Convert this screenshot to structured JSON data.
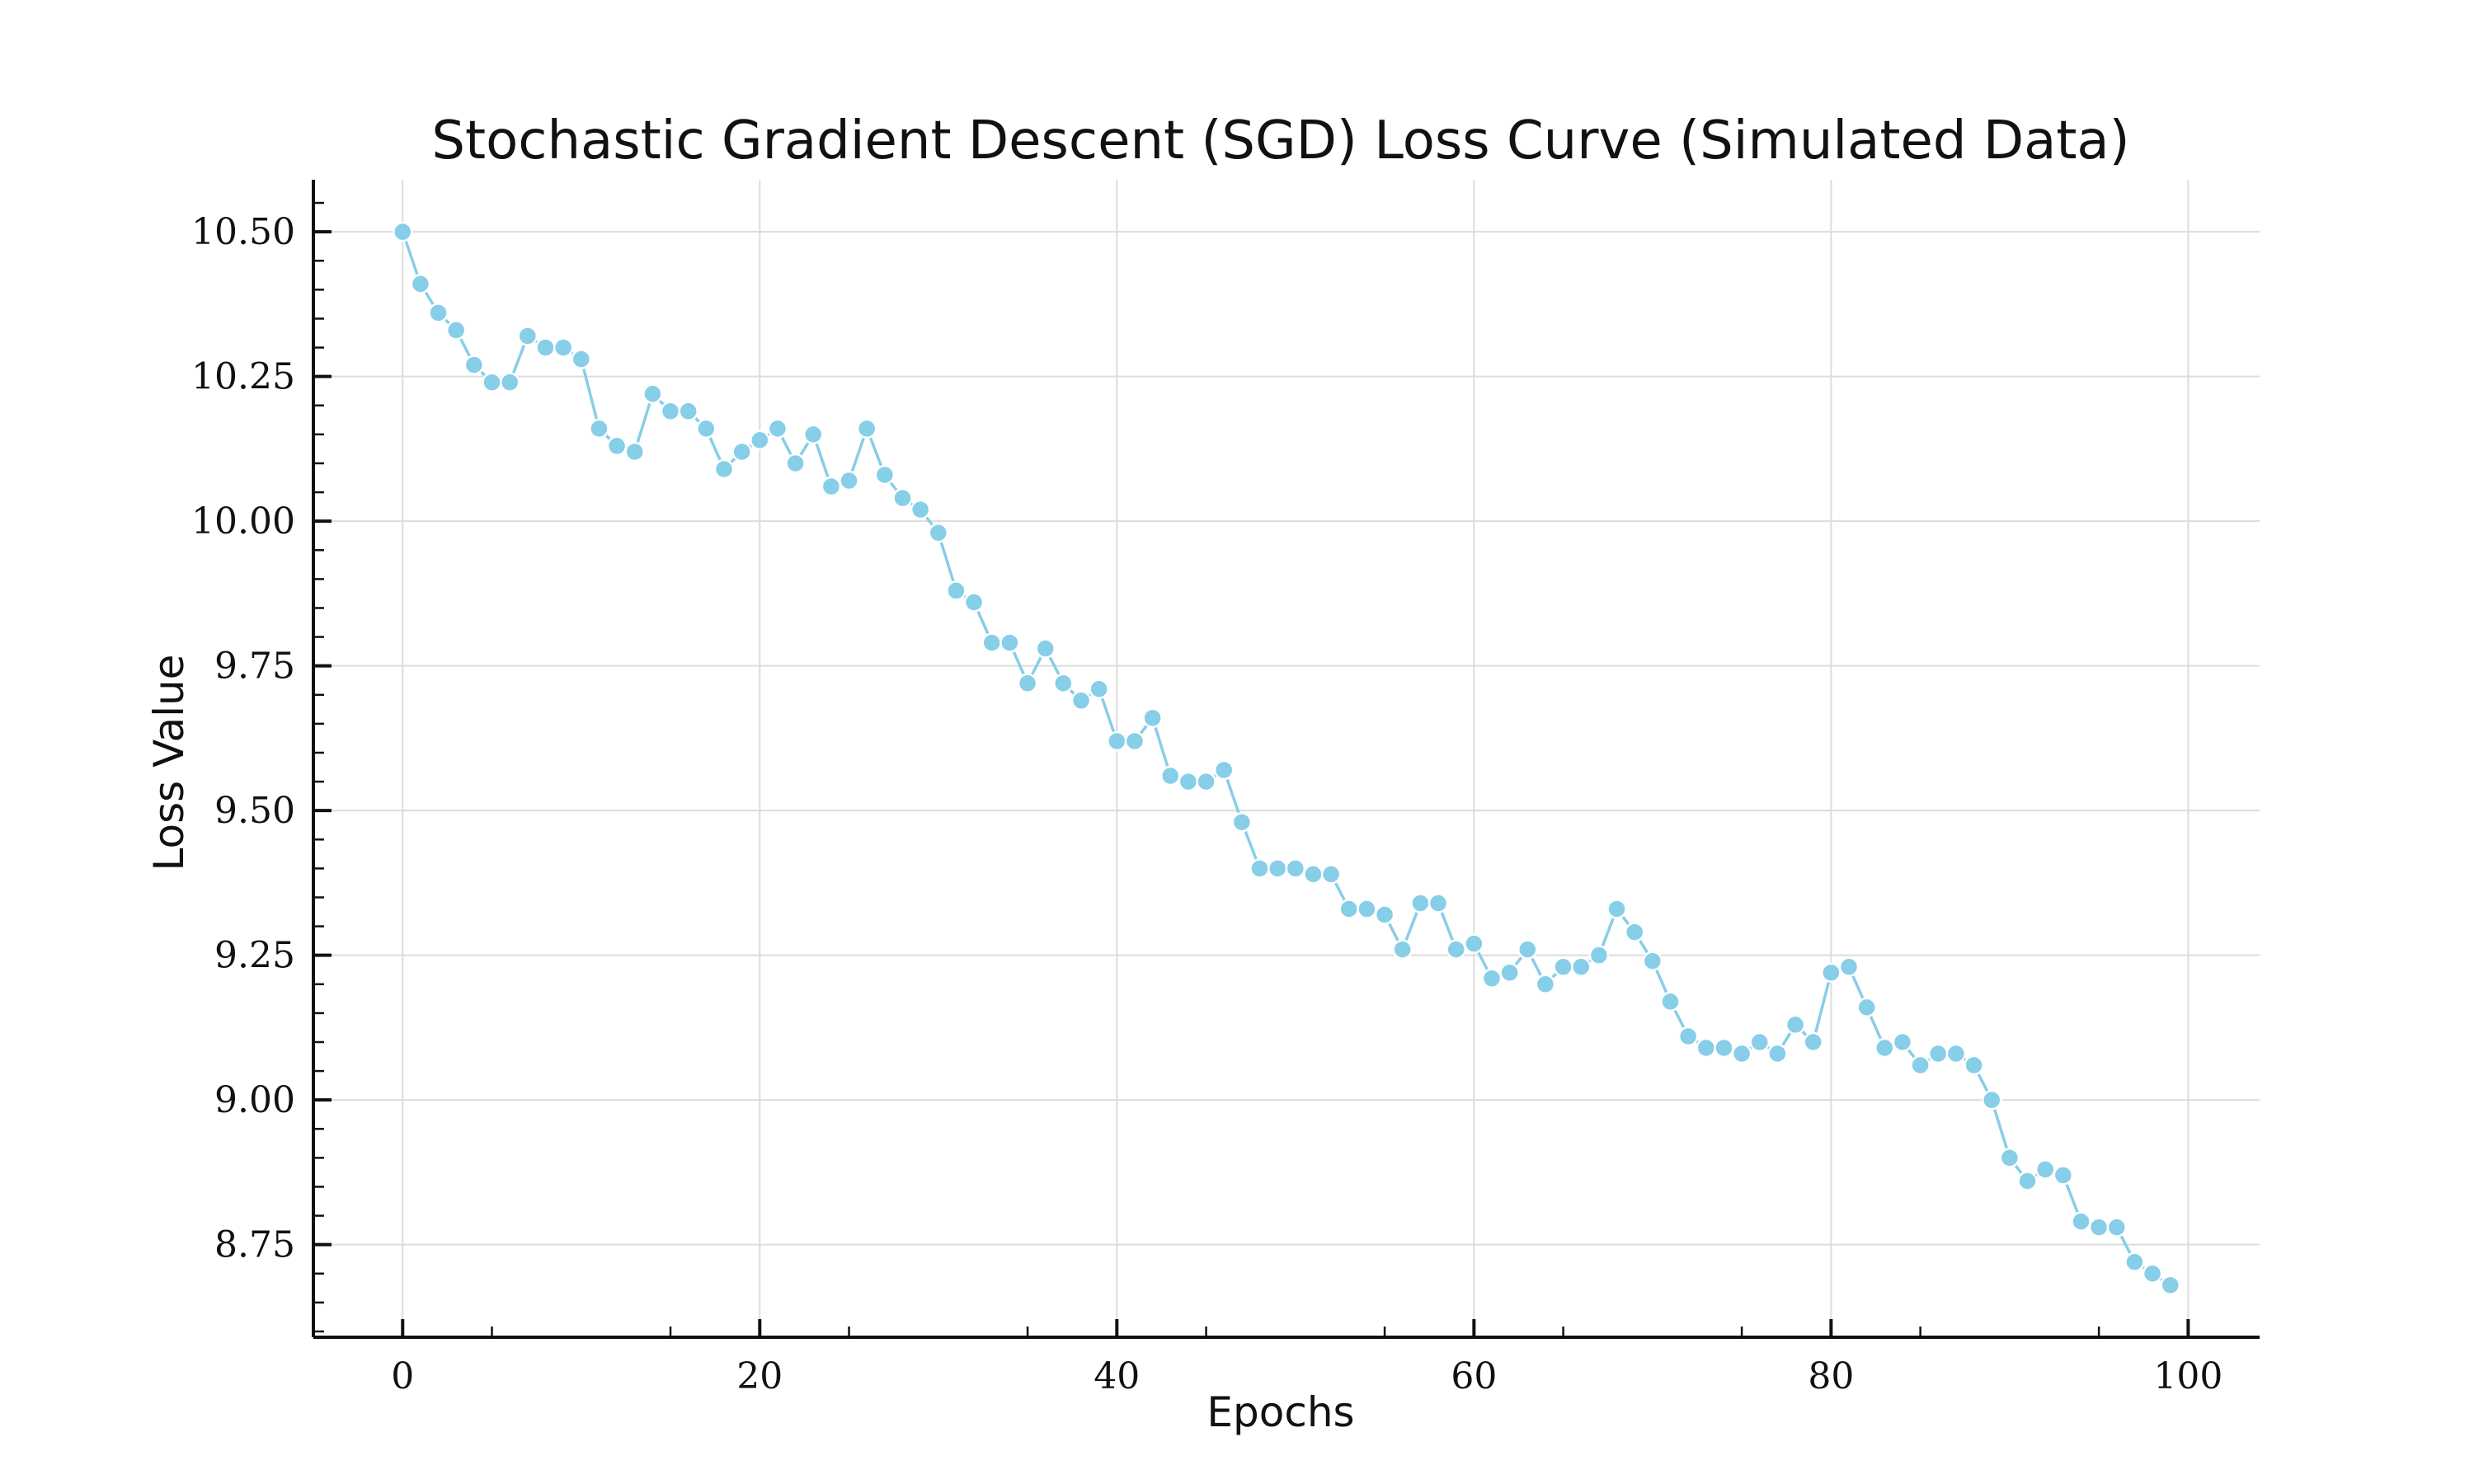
{
  "chart_data": {
    "type": "line",
    "title": "Stochastic Gradient Descent (SGD) Loss Curve (Simulated Data)",
    "xlabel": "Epochs",
    "ylabel": "Loss Value",
    "xlim": [
      -5,
      104
    ],
    "ylim": [
      8.59,
      10.59
    ],
    "x_ticks": [
      0,
      20,
      40,
      60,
      80,
      100
    ],
    "x_tick_labels": [
      "0",
      "20",
      "40",
      "60",
      "80",
      "100"
    ],
    "y_ticks": [
      8.75,
      9.0,
      9.25,
      9.5,
      9.75,
      10.0,
      10.25,
      10.5
    ],
    "y_tick_labels": [
      "8.75",
      "9.00",
      "9.25",
      "9.50",
      "9.75",
      "10.00",
      "10.25",
      "10.50"
    ],
    "grid": true,
    "legend": "none",
    "colors": {
      "series": "#87cee8",
      "grid": "#dcdcdc",
      "axis": "#111111"
    },
    "x": [
      0,
      1,
      2,
      3,
      4,
      5,
      6,
      7,
      8,
      9,
      10,
      11,
      12,
      13,
      14,
      15,
      16,
      17,
      18,
      19,
      20,
      21,
      22,
      23,
      24,
      25,
      26,
      27,
      28,
      29,
      30,
      31,
      32,
      33,
      34,
      35,
      36,
      37,
      38,
      39,
      40,
      41,
      42,
      43,
      44,
      45,
      46,
      47,
      48,
      49,
      50,
      51,
      52,
      53,
      54,
      55,
      56,
      57,
      58,
      59,
      60,
      61,
      62,
      63,
      64,
      65,
      66,
      67,
      68,
      69,
      70,
      71,
      72,
      73,
      74,
      75,
      76,
      77,
      78,
      79,
      80,
      81,
      82,
      83,
      84,
      85,
      86,
      87,
      88,
      89,
      90,
      91,
      92,
      93,
      94,
      95,
      96,
      97,
      98,
      99
    ],
    "values": [
      10.5,
      10.41,
      10.36,
      10.33,
      10.27,
      10.24,
      10.24,
      10.32,
      10.3,
      10.3,
      10.28,
      10.16,
      10.13,
      10.12,
      10.22,
      10.19,
      10.19,
      10.16,
      10.09,
      10.12,
      10.14,
      10.16,
      10.1,
      10.15,
      10.06,
      10.07,
      10.16,
      10.08,
      10.04,
      10.02,
      9.98,
      9.88,
      9.86,
      9.79,
      9.79,
      9.72,
      9.78,
      9.72,
      9.69,
      9.71,
      9.62,
      9.62,
      9.66,
      9.56,
      9.55,
      9.55,
      9.57,
      9.48,
      9.4,
      9.4,
      9.4,
      9.39,
      9.39,
      9.33,
      9.33,
      9.32,
      9.26,
      9.34,
      9.34,
      9.26,
      9.27,
      9.21,
      9.22,
      9.26,
      9.2,
      9.23,
      9.23,
      9.25,
      9.33,
      9.29,
      9.24,
      9.17,
      9.11,
      9.09,
      9.09,
      9.08,
      9.1,
      9.08,
      9.13,
      9.1,
      9.22,
      9.23,
      9.16,
      9.09,
      9.1,
      9.06,
      9.08,
      9.08,
      9.06,
      9.0,
      8.9,
      8.86,
      8.88,
      8.87,
      8.79,
      8.78,
      8.78,
      8.72,
      8.7,
      8.68
    ]
  }
}
